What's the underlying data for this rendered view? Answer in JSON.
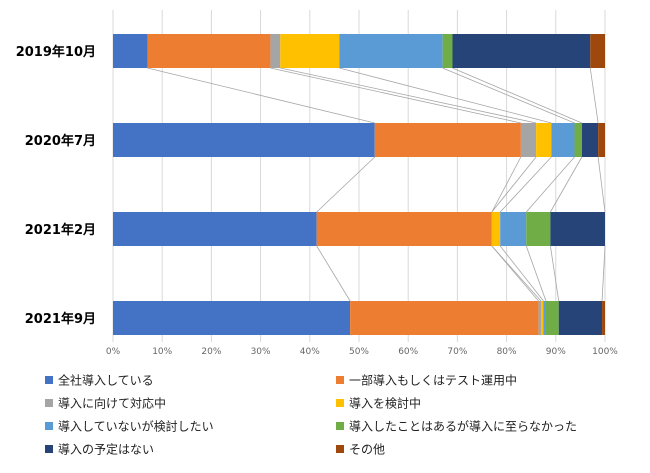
{
  "chart_data": {
    "type": "bar",
    "orientation": "horizontal",
    "stacked": "percent",
    "categories": [
      "2019年10月",
      "2020年7月",
      "2021年2月",
      "2021年9月"
    ],
    "series": [
      {
        "name": "全社導入している",
        "color": "#4472C4",
        "values": [
          7.0,
          53.2,
          41.4,
          48.2
        ]
      },
      {
        "name": "一部導入もしくはテスト運用中",
        "color": "#ED7D31",
        "values": [
          25.0,
          29.7,
          35.6,
          38.3
        ]
      },
      {
        "name": "導入に向けて対応中",
        "color": "#A5A5A5",
        "values": [
          2.0,
          3.1,
          0.0,
          0.5
        ]
      },
      {
        "name": "導入を検討中",
        "color": "#FFC000",
        "values": [
          12.0,
          3.1,
          1.7,
          0.5
        ]
      },
      {
        "name": "導入していないが検討したい",
        "color": "#5B9BD5",
        "values": [
          21.0,
          4.7,
          5.3,
          0.5
        ]
      },
      {
        "name": "導入したことはあるが導入に至らなかった",
        "color": "#70AD47",
        "values": [
          2.0,
          1.5,
          4.9,
          2.6
        ]
      },
      {
        "name": "導入の予定はない",
        "color": "#264478",
        "values": [
          28.0,
          3.3,
          11.1,
          8.8
        ]
      },
      {
        "name": "その他",
        "color": "#9E480E",
        "values": [
          3.0,
          1.4,
          0.0,
          0.6
        ]
      }
    ],
    "xlim": [
      0,
      100
    ],
    "x_ticks": [
      "0%",
      "10%",
      "20%",
      "30%",
      "40%",
      "50%",
      "60%",
      "70%",
      "80%",
      "90%",
      "100%"
    ],
    "grid": true,
    "series_lines": true,
    "legend_position": "bottom",
    "title": "",
    "xlabel": "",
    "ylabel": ""
  }
}
